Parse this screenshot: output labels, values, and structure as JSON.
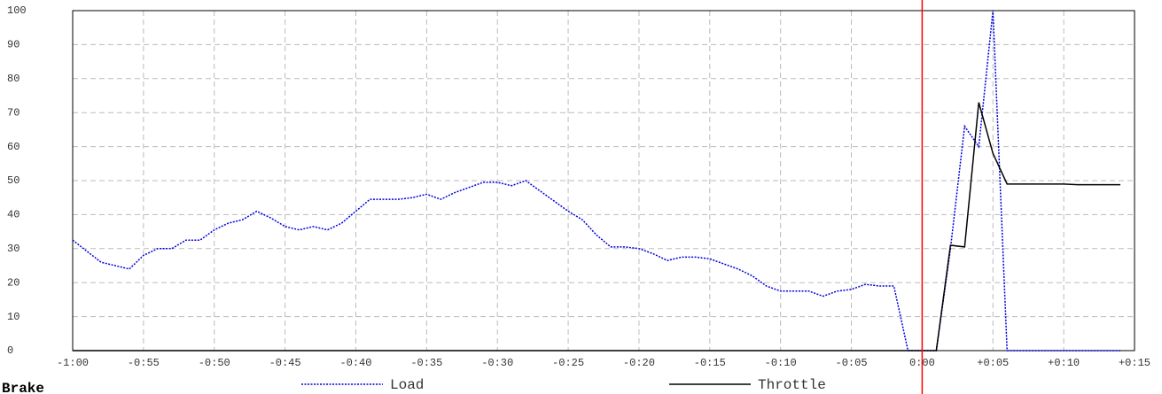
{
  "chart_data": {
    "type": "line",
    "label": "Brake",
    "x": [
      -60,
      -58,
      -56,
      -55,
      -54,
      -53,
      -52,
      -51,
      -50,
      -49,
      -48,
      -47,
      -46,
      -45,
      -44,
      -43,
      -42,
      -41,
      -40,
      -39,
      -38,
      -37,
      -36,
      -35,
      -34,
      -33,
      -32,
      -31,
      -30,
      -29,
      -28,
      -27,
      -26,
      -25,
      -24,
      -23,
      -22,
      -21,
      -20,
      -19,
      -18,
      -17,
      -16,
      -15,
      -14,
      -13,
      -12,
      -11,
      -10,
      -9,
      -8,
      -7,
      -6,
      -5,
      -4,
      -3,
      -2,
      -1,
      0,
      1,
      2,
      3,
      4,
      5,
      6,
      7,
      8,
      9,
      10,
      11,
      12,
      13,
      14
    ],
    "series": [
      {
        "name": "Load",
        "color": "#0000dd",
        "dash": true,
        "values": [
          32.5,
          26,
          24,
          28,
          30,
          30,
          32.5,
          32.5,
          35.5,
          37.5,
          38.5,
          41,
          39,
          36.5,
          35.5,
          36.5,
          35.5,
          37.5,
          41,
          44.5,
          44.5,
          44.5,
          45,
          46,
          44.5,
          46.5,
          48,
          49.5,
          49.5,
          48.5,
          50,
          47,
          44,
          41,
          38.5,
          34,
          30.5,
          30.5,
          30,
          28.5,
          26.5,
          27.5,
          27.5,
          27,
          25.5,
          24,
          22,
          19,
          17.5,
          17.5,
          17.5,
          16,
          17.5,
          18,
          19.5,
          19,
          19,
          0,
          0,
          0,
          30,
          66,
          60,
          100,
          0,
          0,
          0,
          0,
          0,
          0,
          0,
          0,
          0
        ]
      },
      {
        "name": "Throttle",
        "color": "#000000",
        "dash": false,
        "values": [
          0,
          0,
          0,
          0,
          0,
          0,
          0,
          0,
          0,
          0,
          0,
          0,
          0,
          0,
          0,
          0,
          0,
          0,
          0,
          0,
          0,
          0,
          0,
          0,
          0,
          0,
          0,
          0,
          0,
          0,
          0,
          0,
          0,
          0,
          0,
          0,
          0,
          0,
          0,
          0,
          0,
          0,
          0,
          0,
          0,
          0,
          0,
          0,
          0,
          0,
          0,
          0,
          0,
          0,
          0,
          0,
          0,
          0,
          0,
          0,
          31,
          30.5,
          73,
          58,
          49,
          49,
          49,
          49,
          49,
          48.8,
          48.8,
          48.8,
          48.8
        ]
      }
    ],
    "cursor": 0,
    "cursor_color": "#ff0000",
    "xlim": [
      -60,
      15
    ],
    "ylim": [
      0,
      100
    ],
    "xticks": [
      {
        "value": -60,
        "label": "-1:00"
      },
      {
        "value": -55,
        "label": "-0:55"
      },
      {
        "value": -50,
        "label": "-0:50"
      },
      {
        "value": -45,
        "label": "-0:45"
      },
      {
        "value": -40,
        "label": "-0:40"
      },
      {
        "value": -35,
        "label": "-0:35"
      },
      {
        "value": -30,
        "label": "-0:30"
      },
      {
        "value": -25,
        "label": "-0:25"
      },
      {
        "value": -20,
        "label": "-0:20"
      },
      {
        "value": -15,
        "label": "-0:15"
      },
      {
        "value": -10,
        "label": "-0:10"
      },
      {
        "value": -5,
        "label": "-0:05"
      },
      {
        "value": 0,
        "label": "0:00"
      },
      {
        "value": 5,
        "label": "+0:05"
      },
      {
        "value": 10,
        "label": "+0:10"
      },
      {
        "value": 15,
        "label": "+0:15"
      }
    ],
    "yticks": [
      0,
      10,
      20,
      30,
      40,
      50,
      60,
      70,
      80,
      90,
      100
    ],
    "grid": true
  }
}
